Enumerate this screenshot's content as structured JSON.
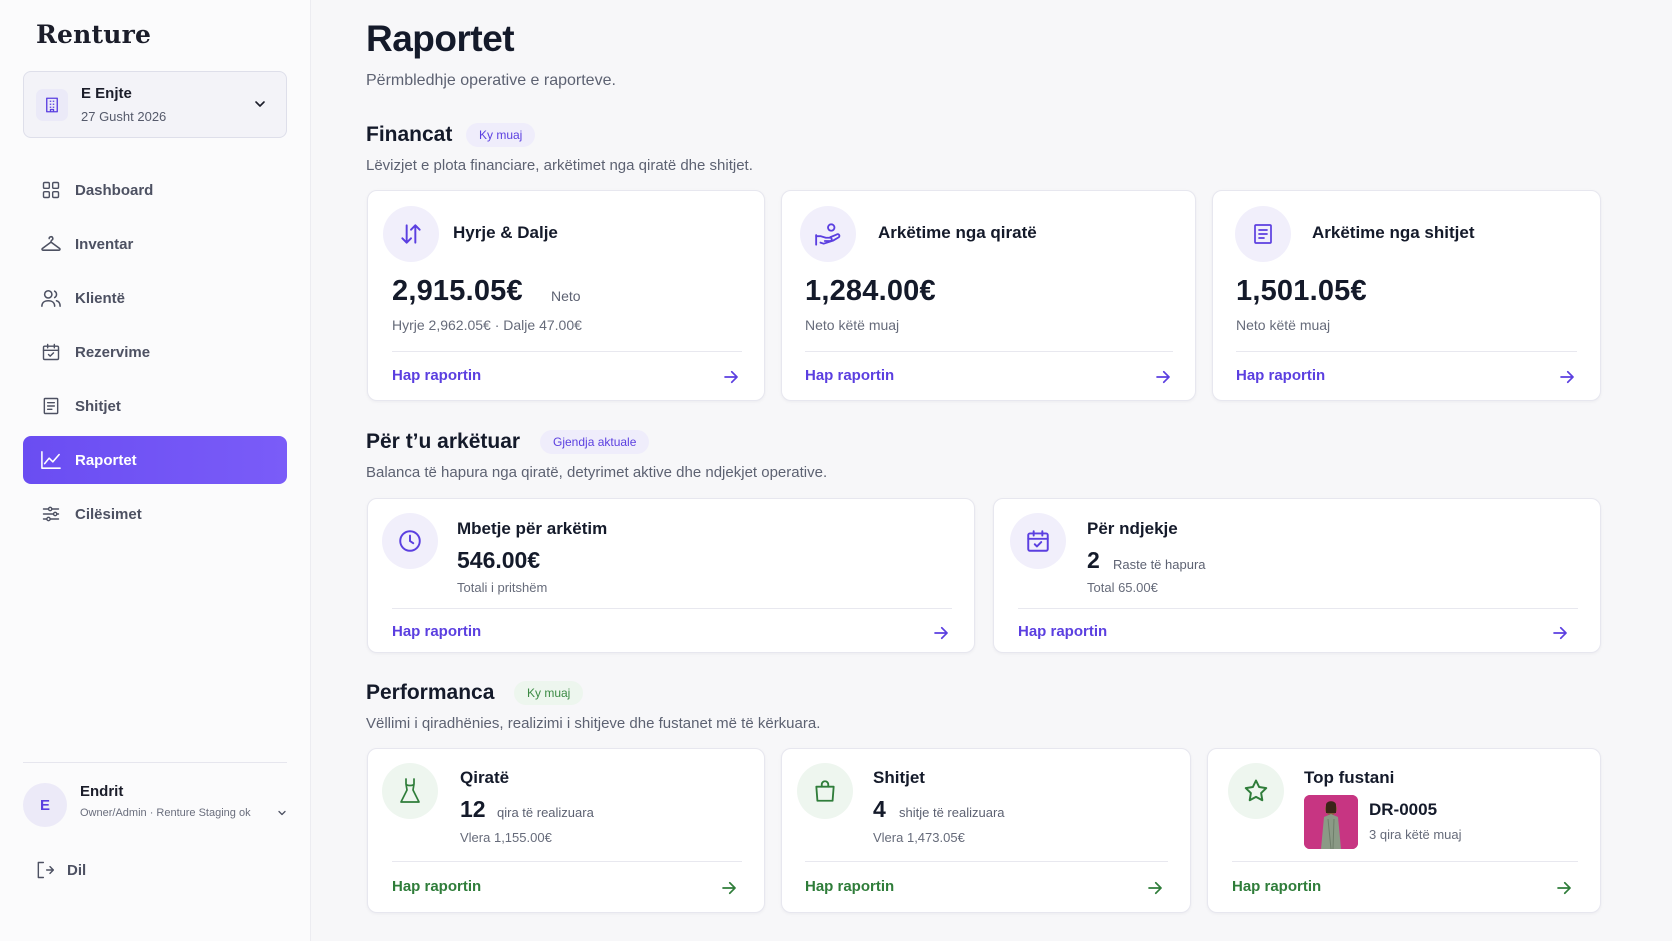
{
  "brand": "Renture",
  "branch": {
    "day": "E Enjte",
    "date": "27 Gusht 2026"
  },
  "nav": [
    {
      "label": "Dashboard",
      "icon": "grid-icon"
    },
    {
      "label": "Inventar",
      "icon": "hanger-icon"
    },
    {
      "label": "Klientë",
      "icon": "users-icon"
    },
    {
      "label": "Rezervime",
      "icon": "calendar-check-icon"
    },
    {
      "label": "Shitjet",
      "icon": "receipt-icon"
    },
    {
      "label": "Raportet",
      "icon": "chart-line-icon",
      "active": true
    },
    {
      "label": "Cilësimet",
      "icon": "sliders-icon"
    }
  ],
  "user": {
    "initial": "E",
    "name": "Endrit",
    "role": "Owner/Admin · Renture Staging ok"
  },
  "logout_label": "Dil",
  "page": {
    "title": "Raportet",
    "subtitle": "Përmbledhje operative e raporteve."
  },
  "sections": {
    "financat": {
      "title": "Financat",
      "pill": "Ky muaj",
      "desc": "Lëvizjet e plota financiare, arkëtimet nga qiratë dhe shitjet.",
      "cards": [
        {
          "title": "Hyrje & Dalje",
          "value": "2,915.05€",
          "unit": "Neto",
          "sub": "Hyrje 2,962.05€ · Dalje 47.00€",
          "link": "Hap raportin"
        },
        {
          "title": "Arkëtime nga qiratë",
          "value": "1,284.00€",
          "sub": "Neto këtë muaj",
          "link": "Hap raportin"
        },
        {
          "title": "Arkëtime nga shitjet",
          "value": "1,501.05€",
          "sub": "Neto këtë muaj",
          "link": "Hap raportin"
        }
      ]
    },
    "arketuar": {
      "title": "Për t’u arkëtuar",
      "pill": "Gjendja aktuale",
      "desc": "Balanca të hapura nga qiratë, detyrimet aktive dhe ndjekjet operative.",
      "cards": [
        {
          "title": "Mbetje për arkëtim",
          "value": "546.00€",
          "sub": "Totali i pritshëm",
          "link": "Hap raportin"
        },
        {
          "title": "Për ndjekje",
          "value": "2",
          "unit": "Raste të hapura",
          "sub": "Total 65.00€",
          "link": "Hap raportin"
        }
      ]
    },
    "performanca": {
      "title": "Performanca",
      "pill": "Ky muaj",
      "desc": "Vëllimi i qiradhënies, realizimi i shitjeve dhe fustanet më të kërkuara.",
      "cards": [
        {
          "title": "Qiratë",
          "value": "12",
          "unit": "qira të realizuara",
          "sub": "Vlera 1,155.00€",
          "link": "Hap raportin"
        },
        {
          "title": "Shitjet",
          "value": "4",
          "unit": "shitje të realizuara",
          "sub": "Vlera 1,473.05€",
          "link": "Hap raportin"
        },
        {
          "title": "Top fustani",
          "value": "DR-0005",
          "sub": "3 qira këtë muaj",
          "link": "Hap raportin"
        }
      ]
    }
  },
  "colors": {
    "accent": "#6a4df2",
    "green": "#2f7d3a"
  }
}
